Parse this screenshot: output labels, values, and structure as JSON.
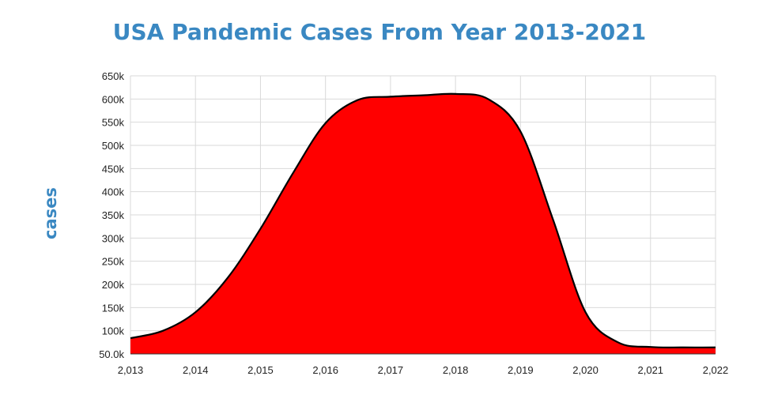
{
  "chart_data": {
    "type": "area",
    "title": "USA Pandemic Cases From Year 2013-2021",
    "xlabel": "",
    "ylabel": "cases",
    "xlim": [
      2013,
      2022
    ],
    "ylim": [
      50000,
      650000
    ],
    "x_ticks": [
      2013,
      2014,
      2015,
      2016,
      2017,
      2018,
      2019,
      2020,
      2021,
      2022
    ],
    "x_tick_labels": [
      "2,013",
      "2,014",
      "2,015",
      "2,016",
      "2,017",
      "2,018",
      "2,019",
      "2,020",
      "2,021",
      "2,022"
    ],
    "y_ticks": [
      50000,
      100000,
      150000,
      200000,
      250000,
      300000,
      350000,
      400000,
      450000,
      500000,
      550000,
      600000,
      650000
    ],
    "y_tick_labels": [
      "50.0k",
      "100k",
      "150k",
      "200k",
      "250k",
      "300k",
      "350k",
      "400k",
      "450k",
      "500k",
      "550k",
      "600k",
      "650k"
    ],
    "grid": true,
    "series": [
      {
        "x": [
          2013,
          2013.5,
          2014,
          2014.5,
          2015,
          2015.5,
          2016,
          2016.5,
          2017,
          2017.5,
          2018,
          2018.5,
          2019,
          2019.5,
          2020,
          2020.5,
          2021,
          2021.5,
          2022
        ],
        "values": [
          84000,
          100000,
          140000,
          215000,
          320000,
          440000,
          548000,
          598000,
          605000,
          608000,
          611000,
          600000,
          530000,
          340000,
          140000,
          75000,
          65000,
          64000,
          64000
        ]
      }
    ],
    "fill_color": "#ff0000",
    "line_color": "#000000"
  }
}
